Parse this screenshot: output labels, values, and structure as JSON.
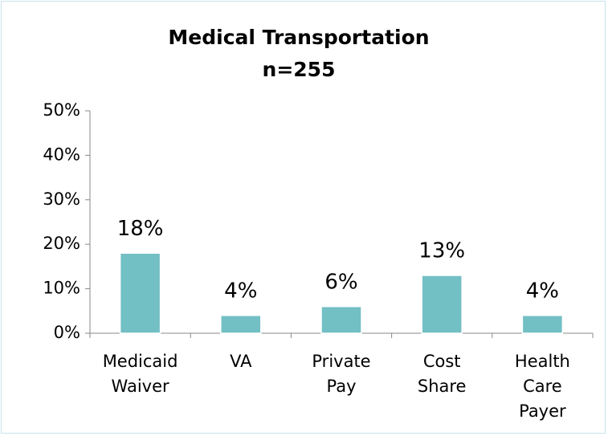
{
  "chart_data": {
    "type": "bar",
    "title": "Medical Transportation",
    "subtitle": "n=255",
    "categories": [
      "Medicaid Waiver",
      "VA",
      "Private Pay",
      "Cost Share",
      "Health Care Payer"
    ],
    "values": [
      18,
      4,
      6,
      13,
      4
    ],
    "value_labels": [
      "18%",
      "4%",
      "6%",
      "13%",
      "4%"
    ],
    "color": "#72bfc4",
    "ylim": [
      0,
      50
    ],
    "yticks": [
      {
        "value": 0,
        "label": "0%"
      },
      {
        "value": 10,
        "label": "10%"
      },
      {
        "value": 20,
        "label": "20%"
      },
      {
        "value": 30,
        "label": "30%"
      },
      {
        "value": 40,
        "label": "40%"
      },
      {
        "value": 50,
        "label": "50%"
      }
    ],
    "grid": false
  }
}
